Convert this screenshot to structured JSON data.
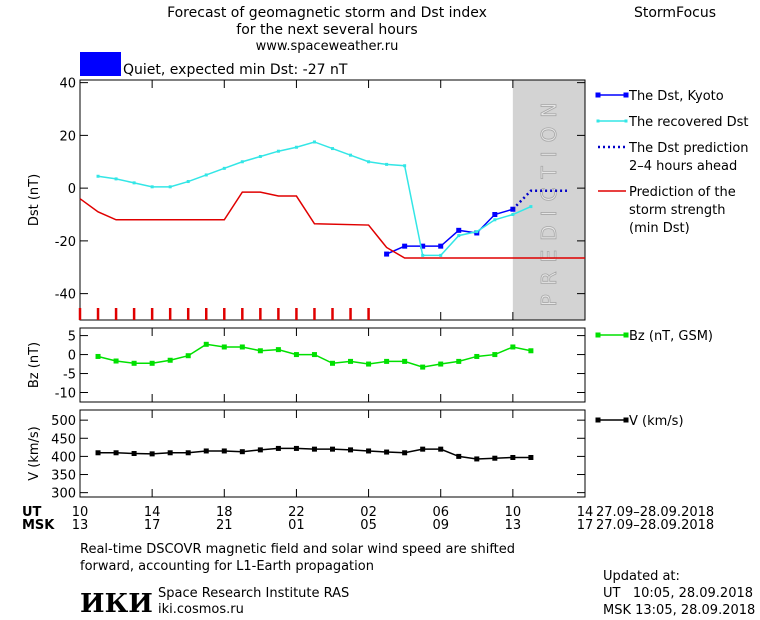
{
  "header": {
    "title_lines": [
      "Forecast of geomagnetic storm and Dst index",
      "for the next several hours",
      "www.spaceweather.ru"
    ],
    "brand": "StormFocus"
  },
  "status": {
    "text": "Quiet, expected min Dst: -27 nT",
    "color": "#0000ff"
  },
  "chart_data": [
    {
      "type": "line",
      "ylabel": "Dst (nT)",
      "xlim": [
        0,
        28
      ],
      "ylim": [
        -50,
        41
      ],
      "yticks": [
        40,
        20,
        0,
        -20,
        -40
      ],
      "prediction_band": {
        "label": "PREDICTION",
        "x": [
          24,
          28
        ]
      },
      "series": [
        {
          "name": "The Dst, Kyoto",
          "color": "#0000ff",
          "style": "solid",
          "marker": "square",
          "x": [
            17,
            18,
            19,
            20,
            21,
            22,
            23,
            24
          ],
          "values": [
            -25,
            -22,
            -22,
            -22,
            -16,
            -17,
            -10,
            -8
          ]
        },
        {
          "name": "The recovered Dst",
          "color": "#33e6e6",
          "style": "solid",
          "marker": "small",
          "x": [
            1,
            2,
            3,
            4,
            5,
            6,
            7,
            8,
            9,
            10,
            11,
            12,
            13,
            14,
            15,
            16,
            17,
            18,
            19,
            20,
            21,
            22,
            23,
            24,
            25
          ],
          "values": [
            4.5,
            3.5,
            2,
            0.5,
            0.5,
            2.5,
            5,
            7.5,
            10,
            12,
            14,
            15.5,
            17.5,
            15,
            12.5,
            10,
            9,
            8.5,
            -25.5,
            -25.5,
            -18,
            -16.5,
            -12,
            -10,
            -7
          ]
        },
        {
          "name": "The Dst prediction\n2–4 hours ahead",
          "color": "#0000c8",
          "style": "dotted",
          "marker": "none",
          "x": [
            24,
            25,
            26,
            27
          ],
          "values": [
            -8,
            -1,
            -1,
            -1
          ]
        },
        {
          "name": "Prediction of the\nstorm strength\n(min Dst)",
          "color": "#e00000",
          "style": "solid",
          "marker": "none",
          "x": [
            0,
            1,
            2,
            8,
            9,
            10,
            11,
            12,
            13,
            16,
            17,
            18,
            28
          ],
          "values": [
            -4,
            -9,
            -12,
            -12,
            -1.5,
            -1.5,
            -3,
            -3,
            -13.5,
            -14,
            -22.5,
            -26.5,
            -26.5
          ]
        }
      ]
    },
    {
      "type": "line",
      "ylabel": "Bz (nT)",
      "xlim": [
        0,
        28
      ],
      "ylim": [
        -12.5,
        7
      ],
      "yticks": [
        5,
        0,
        -5,
        -10
      ],
      "series": [
        {
          "name": "Bz (nT, GSM)",
          "color": "#00e000",
          "style": "solid",
          "marker": "square",
          "x": [
            1,
            2,
            3,
            4,
            5,
            6,
            7,
            8,
            9,
            10,
            11,
            12,
            13,
            14,
            15,
            16,
            17,
            18,
            19,
            20,
            21,
            22,
            23,
            24,
            25
          ],
          "values": [
            -0.5,
            -1.7,
            -2.3,
            -2.3,
            -1.5,
            -0.3,
            2.7,
            2,
            2,
            1,
            1.3,
            0,
            0,
            -2.3,
            -1.8,
            -2.5,
            -1.8,
            -1.8,
            -3.3,
            -2.5,
            -1.8,
            -0.5,
            0,
            2,
            1
          ]
        }
      ]
    },
    {
      "type": "line",
      "ylabel": "V (km/s)",
      "xlim": [
        0,
        28
      ],
      "ylim": [
        288,
        528
      ],
      "yticks": [
        500,
        450,
        400,
        350,
        300
      ],
      "series": [
        {
          "name": "V (km/s)",
          "color": "#000000",
          "style": "solid",
          "marker": "square",
          "x": [
            1,
            2,
            3,
            4,
            5,
            6,
            7,
            8,
            9,
            10,
            11,
            12,
            13,
            14,
            15,
            16,
            17,
            18,
            19,
            20,
            21,
            22,
            23,
            24,
            25
          ],
          "values": [
            410,
            410,
            408,
            407,
            410,
            410,
            415,
            415,
            413,
            418,
            422,
            422,
            420,
            420,
            418,
            415,
            412,
            410,
            420,
            420,
            400,
            393,
            395,
            397,
            397
          ]
        }
      ]
    }
  ],
  "time_axis": {
    "rows": [
      {
        "name": "UT",
        "date": "27.09–28.09.2018",
        "ticks": [
          {
            "value": 0,
            "label": "10"
          },
          {
            "value": 4,
            "label": "14"
          },
          {
            "value": 8,
            "label": "18"
          },
          {
            "value": 12,
            "label": "22"
          },
          {
            "value": 16,
            "label": "02"
          },
          {
            "value": 20,
            "label": "06"
          },
          {
            "value": 24,
            "label": "10"
          },
          {
            "value": 28,
            "label": "14"
          }
        ]
      },
      {
        "name": "MSK",
        "date": "27.09–28.09.2018",
        "ticks": [
          {
            "value": 0,
            "label": "13"
          },
          {
            "value": 4,
            "label": "17"
          },
          {
            "value": 8,
            "label": "21"
          },
          {
            "value": 12,
            "label": "01"
          },
          {
            "value": 16,
            "label": "05"
          },
          {
            "value": 20,
            "label": "09"
          },
          {
            "value": 24,
            "label": "13"
          },
          {
            "value": 28,
            "label": "17"
          }
        ]
      }
    ]
  },
  "footer": {
    "note_lines": [
      "Real-time DSCOVR magnetic field and solar wind speed are shifted",
      "forward, accounting for L1-Earth propagation"
    ],
    "logo": "ИКИ",
    "institute": "Space Research Institute RAS",
    "site": "iki.cosmos.ru",
    "updated_lines": [
      "Updated at:",
      "UT   10:05, 28.09.2018",
      "MSK 13:05, 28.09.2018"
    ]
  }
}
